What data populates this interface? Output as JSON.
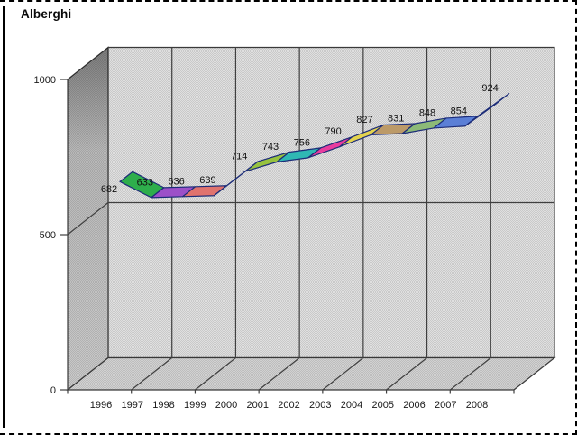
{
  "chart": {
    "title": "Alberghi"
  },
  "chart_data": {
    "type": "line",
    "subtype": "3d-ribbon",
    "title": "Alberghi",
    "xlabel": "",
    "ylabel": "",
    "categories": [
      "1996",
      "1997",
      "1998",
      "1999",
      "2000",
      "2001",
      "2002",
      "2003",
      "2004",
      "2005",
      "2006",
      "2007",
      "2008"
    ],
    "values": [
      682,
      633,
      636,
      639,
      714,
      743,
      756,
      790,
      827,
      831,
      848,
      854,
      924
    ],
    "series": [
      {
        "name": "Alberghi",
        "values": [
          682,
          633,
          636,
          639,
          714,
          743,
          756,
          790,
          827,
          831,
          848,
          854,
          924
        ]
      }
    ],
    "data_labels": [
      "682",
      "633",
      "636",
      "639",
      "714",
      "743",
      "756",
      "790",
      "827",
      "831",
      "848",
      "854",
      "924"
    ],
    "yticks": [
      "0",
      "500",
      "1000"
    ],
    "ytick_values": [
      0,
      500,
      1000
    ],
    "ylim": [
      0,
      1000
    ],
    "grid": true,
    "legend": false,
    "segment_colors": [
      "#2EAE4C",
      "#9C50C8",
      "#E0736E",
      "#273A8F",
      "#97C23F",
      "#2FB8B4",
      "#E83C9E",
      "#E3D34F",
      "#BC9A68",
      "#8CBA78",
      "#5B7FD6",
      "#7A6CC0"
    ],
    "ribbon_outline_color": "#1C2C78",
    "label_color": "#111111",
    "axis_text_color": "#1a1a1a",
    "gridline_color": "#3f3f3f",
    "wall_back_color": "#DFDFDF",
    "wall_dither_color": "#C9C9C9",
    "wall_side_shade": "#9d9d9d",
    "floor_shade": "#cfcfcf",
    "frame_border_color": "#000000",
    "background_color": "#ffffff"
  }
}
